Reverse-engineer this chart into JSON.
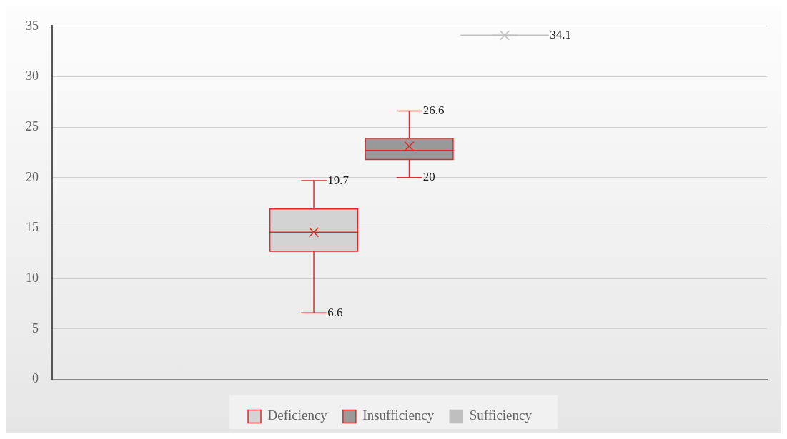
{
  "chart_data": {
    "type": "box",
    "categories": [
      null
    ],
    "series": [
      {
        "name": "Deficiency",
        "color": "#d3d3d3",
        "boxes": [
          {
            "low": 6.6,
            "q1": 12.7,
            "median": 14.6,
            "q3": 16.9,
            "high": 19.7,
            "mean": 14.6
          }
        ]
      },
      {
        "name": "Insufficiency",
        "color": "#999999",
        "boxes": [
          {
            "low": 20,
            "q1": 21.8,
            "median": 22.7,
            "q3": 23.9,
            "high": 26.6,
            "mean": 23.1
          }
        ]
      },
      {
        "name": "Sufficiency",
        "color": "#bfbfbf",
        "boxes": [
          {
            "low": 34.1,
            "q1": 34.1,
            "median": 34.1,
            "q3": 34.1,
            "high": 34.1,
            "mean": 34.1
          }
        ]
      }
    ],
    "annotations": [
      "19.7",
      "6.6",
      "26.6",
      "20",
      "34.1"
    ],
    "ylim": [
      0,
      35
    ],
    "yticks": [
      0,
      5,
      10,
      15,
      20,
      25,
      30,
      35
    ],
    "grid": "y",
    "legend": "bottom"
  }
}
